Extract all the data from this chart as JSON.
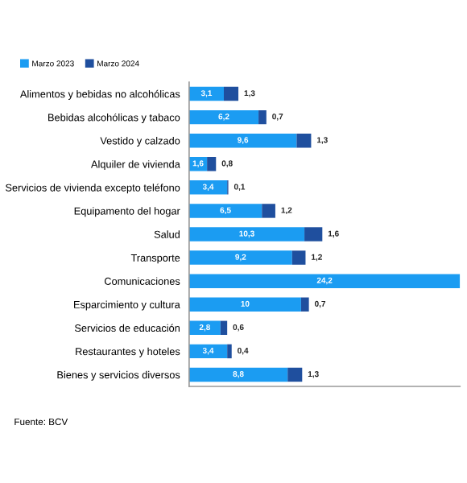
{
  "chart_data": {
    "type": "bar",
    "orientation": "horizontal",
    "stacked": true,
    "categories": [
      "Alimentos y bebidas no alcohólicas",
      "Bebidas alcohólicas y tabaco",
      "Vestido y calzado",
      "Alquiler de vivienda",
      "Servicios de vivienda excepto teléfono",
      "Equipamento del hogar",
      "Salud",
      "Transporte",
      "Comunicaciones",
      "Esparcimiento y cultura",
      "Servicios de educación",
      "Restaurantes y hoteles",
      "Bienes y servicios diversos"
    ],
    "series": [
      {
        "name": "Marzo 2023",
        "color": "#1b9cf2",
        "values": [
          3.1,
          6.2,
          9.6,
          1.6,
          3.4,
          6.5,
          10.3,
          9.2,
          24.2,
          10,
          2.8,
          3.4,
          8.8
        ],
        "value_labels": [
          "3,1",
          "6,2",
          "9,6",
          "1,6",
          "3,4",
          "6,5",
          "10,3",
          "9,2",
          "24,2",
          "10",
          "2,8",
          "3,4",
          "8,8"
        ]
      },
      {
        "name": "Marzo 2024",
        "color": "#1f4f9e",
        "values": [
          1.3,
          0.7,
          1.3,
          0.8,
          0.1,
          1.2,
          1.6,
          1.2,
          null,
          0.7,
          0.6,
          0.4,
          1.3
        ],
        "value_labels": [
          "1,3",
          "0,7",
          "1,3",
          "0,8",
          "0,1",
          "1,2",
          "1,6",
          "1,2",
          null,
          "0,7",
          "0,6",
          "0,4",
          "1,3"
        ]
      }
    ],
    "legend": "top left",
    "tick_labels": "y",
    "annotations": [
      "Fuente: BCV"
    ]
  }
}
